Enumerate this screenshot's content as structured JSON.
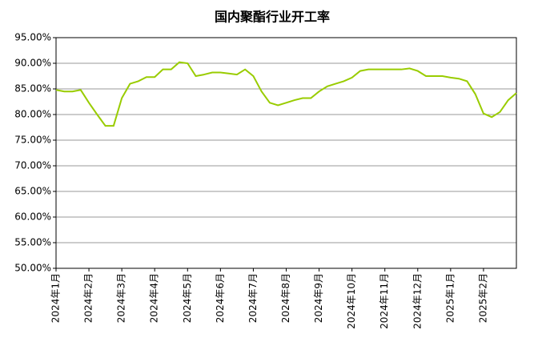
{
  "chart_data": {
    "type": "line",
    "title": "国内聚酯行业开工率",
    "categories": [
      "2024年1月",
      null,
      null,
      null,
      "2024年2月",
      null,
      null,
      null,
      "2024年3月",
      null,
      null,
      null,
      "2024年4月",
      null,
      null,
      null,
      "2024年5月",
      null,
      null,
      null,
      "2024年6月",
      null,
      null,
      null,
      "2024年7月",
      null,
      null,
      null,
      "2024年8月",
      null,
      null,
      null,
      "2024年9月",
      null,
      null,
      null,
      "2024年10月",
      null,
      null,
      null,
      "2024年11月",
      null,
      null,
      null,
      "2024年12月",
      null,
      null,
      null,
      "2025年1月",
      null,
      null,
      null,
      "2025年2月",
      null,
      null,
      null,
      null
    ],
    "series": [
      {
        "color": "#99cc00",
        "values": [
          84.8,
          84.5,
          84.5,
          84.8,
          82.3,
          80,
          77.8,
          77.8,
          83.2,
          86,
          86.5,
          87.3,
          87.3,
          88.8,
          88.8,
          90.2,
          90,
          87.5,
          87.8,
          88.2,
          88.2,
          88,
          87.8,
          88.8,
          87.5,
          84.5,
          82.3,
          81.8,
          82.3,
          82.8,
          83.2,
          83.2,
          84.5,
          85.5,
          86,
          86.5,
          87.2,
          88.5,
          88.8,
          88.8,
          88.8,
          88.8,
          88.8,
          89,
          88.5,
          87.5,
          87.5,
          87.5,
          87.2,
          87,
          86.5,
          84,
          80.2,
          79.5,
          80.5,
          82.8,
          84.2
        ]
      }
    ],
    "ylim": [
      50,
      95
    ],
    "yticks": [
      {
        "value": 50,
        "label": "50.00%"
      },
      {
        "value": 55,
        "label": "55.00%"
      },
      {
        "value": 60,
        "label": "60.00%"
      },
      {
        "value": 65,
        "label": "65.00%"
      },
      {
        "value": 70,
        "label": "70.00%"
      },
      {
        "value": 75,
        "label": "75.00%"
      },
      {
        "value": 80,
        "label": "80.00%"
      },
      {
        "value": 85,
        "label": "85.00%"
      },
      {
        "value": 90,
        "label": "90.00%"
      },
      {
        "value": 95,
        "label": "95.00%"
      }
    ],
    "grid": true
  }
}
